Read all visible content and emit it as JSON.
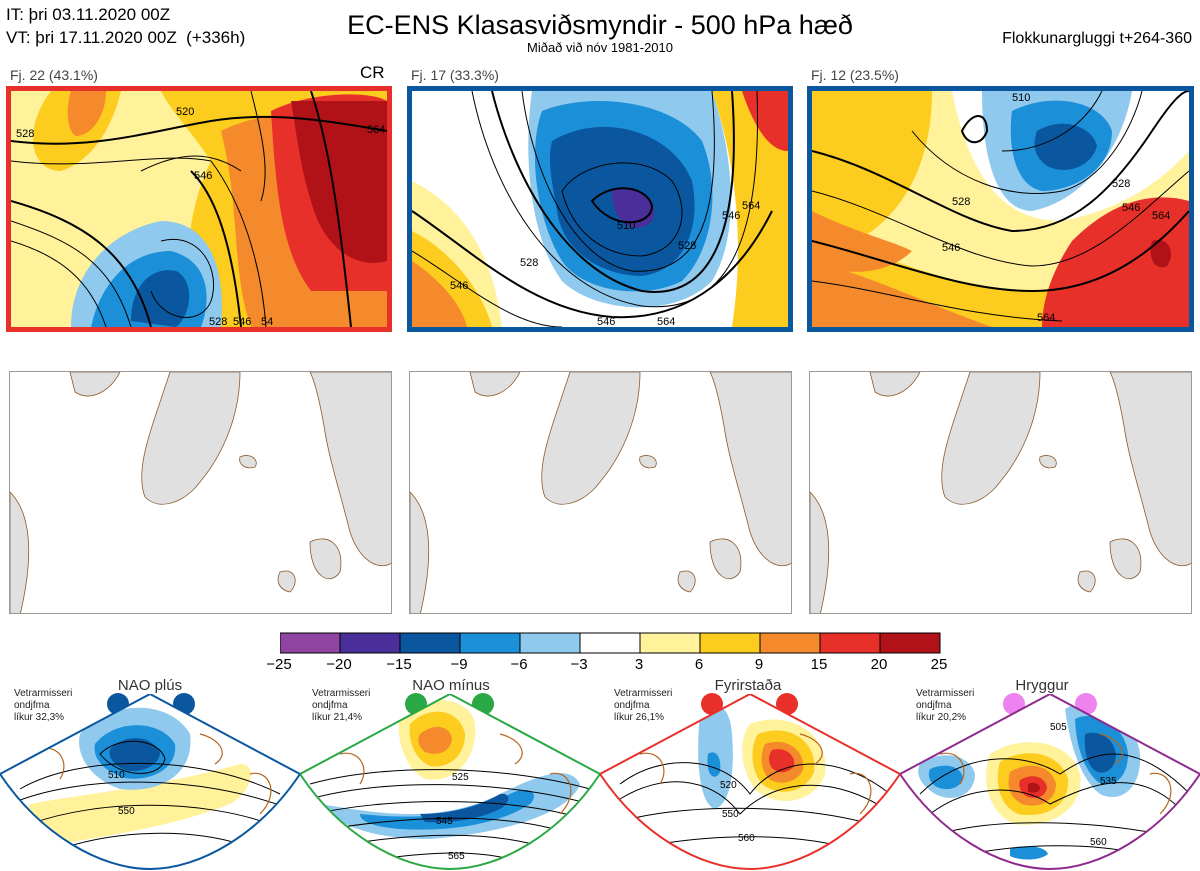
{
  "header": {
    "it_line": "IT: þri 03.11.2020 00Z",
    "vt_line": "VT: þri 17.11.2020 00Z  (+336h)",
    "title": "EC-ENS Klasasviðsmyndir - 500 hPa hæð",
    "subtitle": "Miðað við nóv 1981-2010",
    "window": "Flokkunargluggi t+264-360"
  },
  "panels": [
    {
      "label": "Fj. 22 (43.1%)",
      "marker": "CR",
      "border_color": "#e8302a",
      "contours": [
        "528",
        "520",
        "546",
        "564",
        "528",
        "546",
        "54"
      ]
    },
    {
      "label": "Fj. 17 (33.3%)",
      "border_color": "#0a57a0",
      "contours": [
        "510",
        "528",
        "528",
        "546",
        "546",
        "546",
        "564",
        "564"
      ]
    },
    {
      "label": "Fj. 12 (23.5%)",
      "border_color": "#0a57a0",
      "contours": [
        "510",
        "528",
        "528",
        "546",
        "546",
        "564",
        "564"
      ]
    }
  ],
  "colorbar": {
    "ticks": [
      "−25",
      "−20",
      "−15",
      "−9",
      "−6",
      "−3",
      "3",
      "6",
      "9",
      "15",
      "20",
      "25"
    ],
    "colors": [
      "#8e44a0",
      "#4a2f9a",
      "#0a57a0",
      "#1b8fd8",
      "#8fc9ee",
      "#ffffff",
      "#fff29a",
      "#fccc1e",
      "#f58a2c",
      "#e8302a",
      "#b01217"
    ]
  },
  "regimes": [
    {
      "name": "NAO plús",
      "prob": "Vetrarmisseri\nondjfma\nlíkur 32,3%",
      "color": "#0a57a0",
      "dot_color": "#0a57a0",
      "contours": [
        "510",
        "550"
      ]
    },
    {
      "name": "NAO mínus",
      "prob": "Vetrarmisseri\nondjfma\nlíkur 21,4%",
      "color": "#2aa845",
      "dot_color": "#2aa845",
      "contours": [
        "525",
        "545",
        "565"
      ]
    },
    {
      "name": "Fyrirstaða",
      "prob": "Vetrarmisseri\nondjfma\nlíkur 26,1%",
      "color": "#e8302a",
      "dot_color": "#e8302a",
      "contours": [
        "520",
        "550",
        "560"
      ]
    },
    {
      "name": "Hryggur",
      "prob": "Vetrarmisseri\nondjfma\nlíkur 20,2%",
      "color": "#8e2a8e",
      "dot_color": "#ee82ee",
      "contours": [
        "505",
        "535",
        "560"
      ]
    }
  ]
}
